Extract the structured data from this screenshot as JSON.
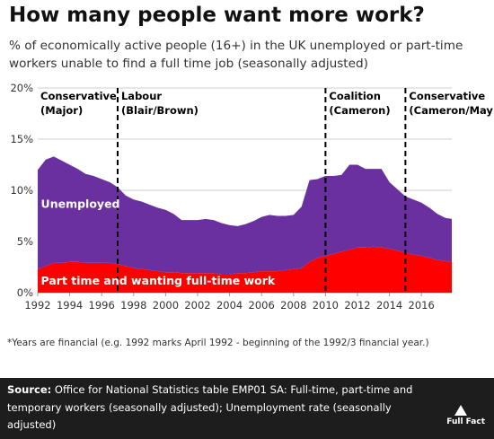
{
  "header": {
    "title": "How many people want more work?",
    "subtitle": "% of economically active people (16+) in the UK unemployed or part-time workers unable to find a full time job (seasonally adjusted)"
  },
  "footnote": "*Years are financial (e.g. 1992 marks April 1992 - beginning of the 1992/3 financial year.)",
  "source": {
    "label": "Source:",
    "text": "Office for National Statistics table EMP01 SA: Full-time, part-time and temporary workers (seasonally adjusted); Unemployment rate (seasonally adjusted)"
  },
  "logo": {
    "text": "Full Fact"
  },
  "chart_data": {
    "type": "area",
    "title": "",
    "xlabel": "",
    "ylabel": "",
    "xlim": [
      1992,
      2017.9
    ],
    "ylim": [
      0,
      20
    ],
    "x_ticks": [
      "1992",
      "1994",
      "1996",
      "1998",
      "2000",
      "2002",
      "2004",
      "2006",
      "2008",
      "2010",
      "2012",
      "2014",
      "2016"
    ],
    "y_ticks": [
      "0%",
      "5%",
      "10%",
      "15%",
      "20%"
    ],
    "grid": true,
    "stacked": true,
    "x": [
      1992.0,
      1992.5,
      1993.0,
      1993.5,
      1994.0,
      1994.5,
      1995.0,
      1995.5,
      1996.0,
      1996.5,
      1997.0,
      1997.5,
      1998.0,
      1998.5,
      1999.0,
      1999.5,
      2000.0,
      2000.5,
      2001.0,
      2001.5,
      2002.0,
      2002.5,
      2003.0,
      2003.5,
      2004.0,
      2004.5,
      2005.0,
      2005.5,
      2006.0,
      2006.5,
      2007.0,
      2007.5,
      2008.0,
      2008.5,
      2009.0,
      2009.5,
      2010.0,
      2010.5,
      2011.0,
      2011.5,
      2012.0,
      2012.5,
      2013.0,
      2013.5,
      2014.0,
      2014.5,
      2015.0,
      2015.5,
      2016.0,
      2016.5,
      2017.0,
      2017.5,
      2017.9
    ],
    "series": [
      {
        "name": "Part time and wanting full-time work",
        "color": "#ff0000",
        "values": [
          2.3,
          2.6,
          2.9,
          2.9,
          3.0,
          3.0,
          2.9,
          2.9,
          2.9,
          2.9,
          2.8,
          2.6,
          2.4,
          2.3,
          2.2,
          2.1,
          2.0,
          2.0,
          1.9,
          1.9,
          1.9,
          1.9,
          1.9,
          1.8,
          1.8,
          1.9,
          1.9,
          2.0,
          2.1,
          2.1,
          2.1,
          2.2,
          2.3,
          2.4,
          3.0,
          3.4,
          3.6,
          3.8,
          4.0,
          4.2,
          4.4,
          4.4,
          4.5,
          4.4,
          4.3,
          4.1,
          3.9,
          3.7,
          3.6,
          3.4,
          3.2,
          3.1,
          3.0
        ]
      },
      {
        "name": "Unemployed",
        "color": "#6a30a0",
        "values": [
          9.7,
          10.4,
          10.4,
          10.0,
          9.5,
          9.1,
          8.7,
          8.5,
          8.2,
          7.9,
          7.5,
          6.9,
          6.7,
          6.6,
          6.4,
          6.2,
          6.1,
          5.7,
          5.2,
          5.2,
          5.2,
          5.3,
          5.2,
          5.0,
          4.8,
          4.6,
          4.8,
          5.0,
          5.3,
          5.5,
          5.4,
          5.3,
          5.3,
          6.0,
          8.0,
          7.7,
          7.8,
          7.6,
          7.5,
          8.3,
          8.1,
          7.7,
          7.6,
          7.7,
          6.5,
          6.0,
          5.5,
          5.4,
          5.2,
          4.9,
          4.5,
          4.2,
          4.2
        ]
      }
    ],
    "annotations": [
      {
        "line1": "Conservative",
        "line2": "(Major)",
        "x": 1992.0,
        "divider": false
      },
      {
        "line1": "Labour",
        "line2": "(Blair/Brown)",
        "x": 1997.0,
        "divider": true
      },
      {
        "line1": "Coalition",
        "line2": "(Cameron)",
        "x": 2010.0,
        "divider": true
      },
      {
        "line1": "Conservative",
        "line2": "(Cameron/May)",
        "x": 2015.0,
        "divider": true
      }
    ]
  }
}
